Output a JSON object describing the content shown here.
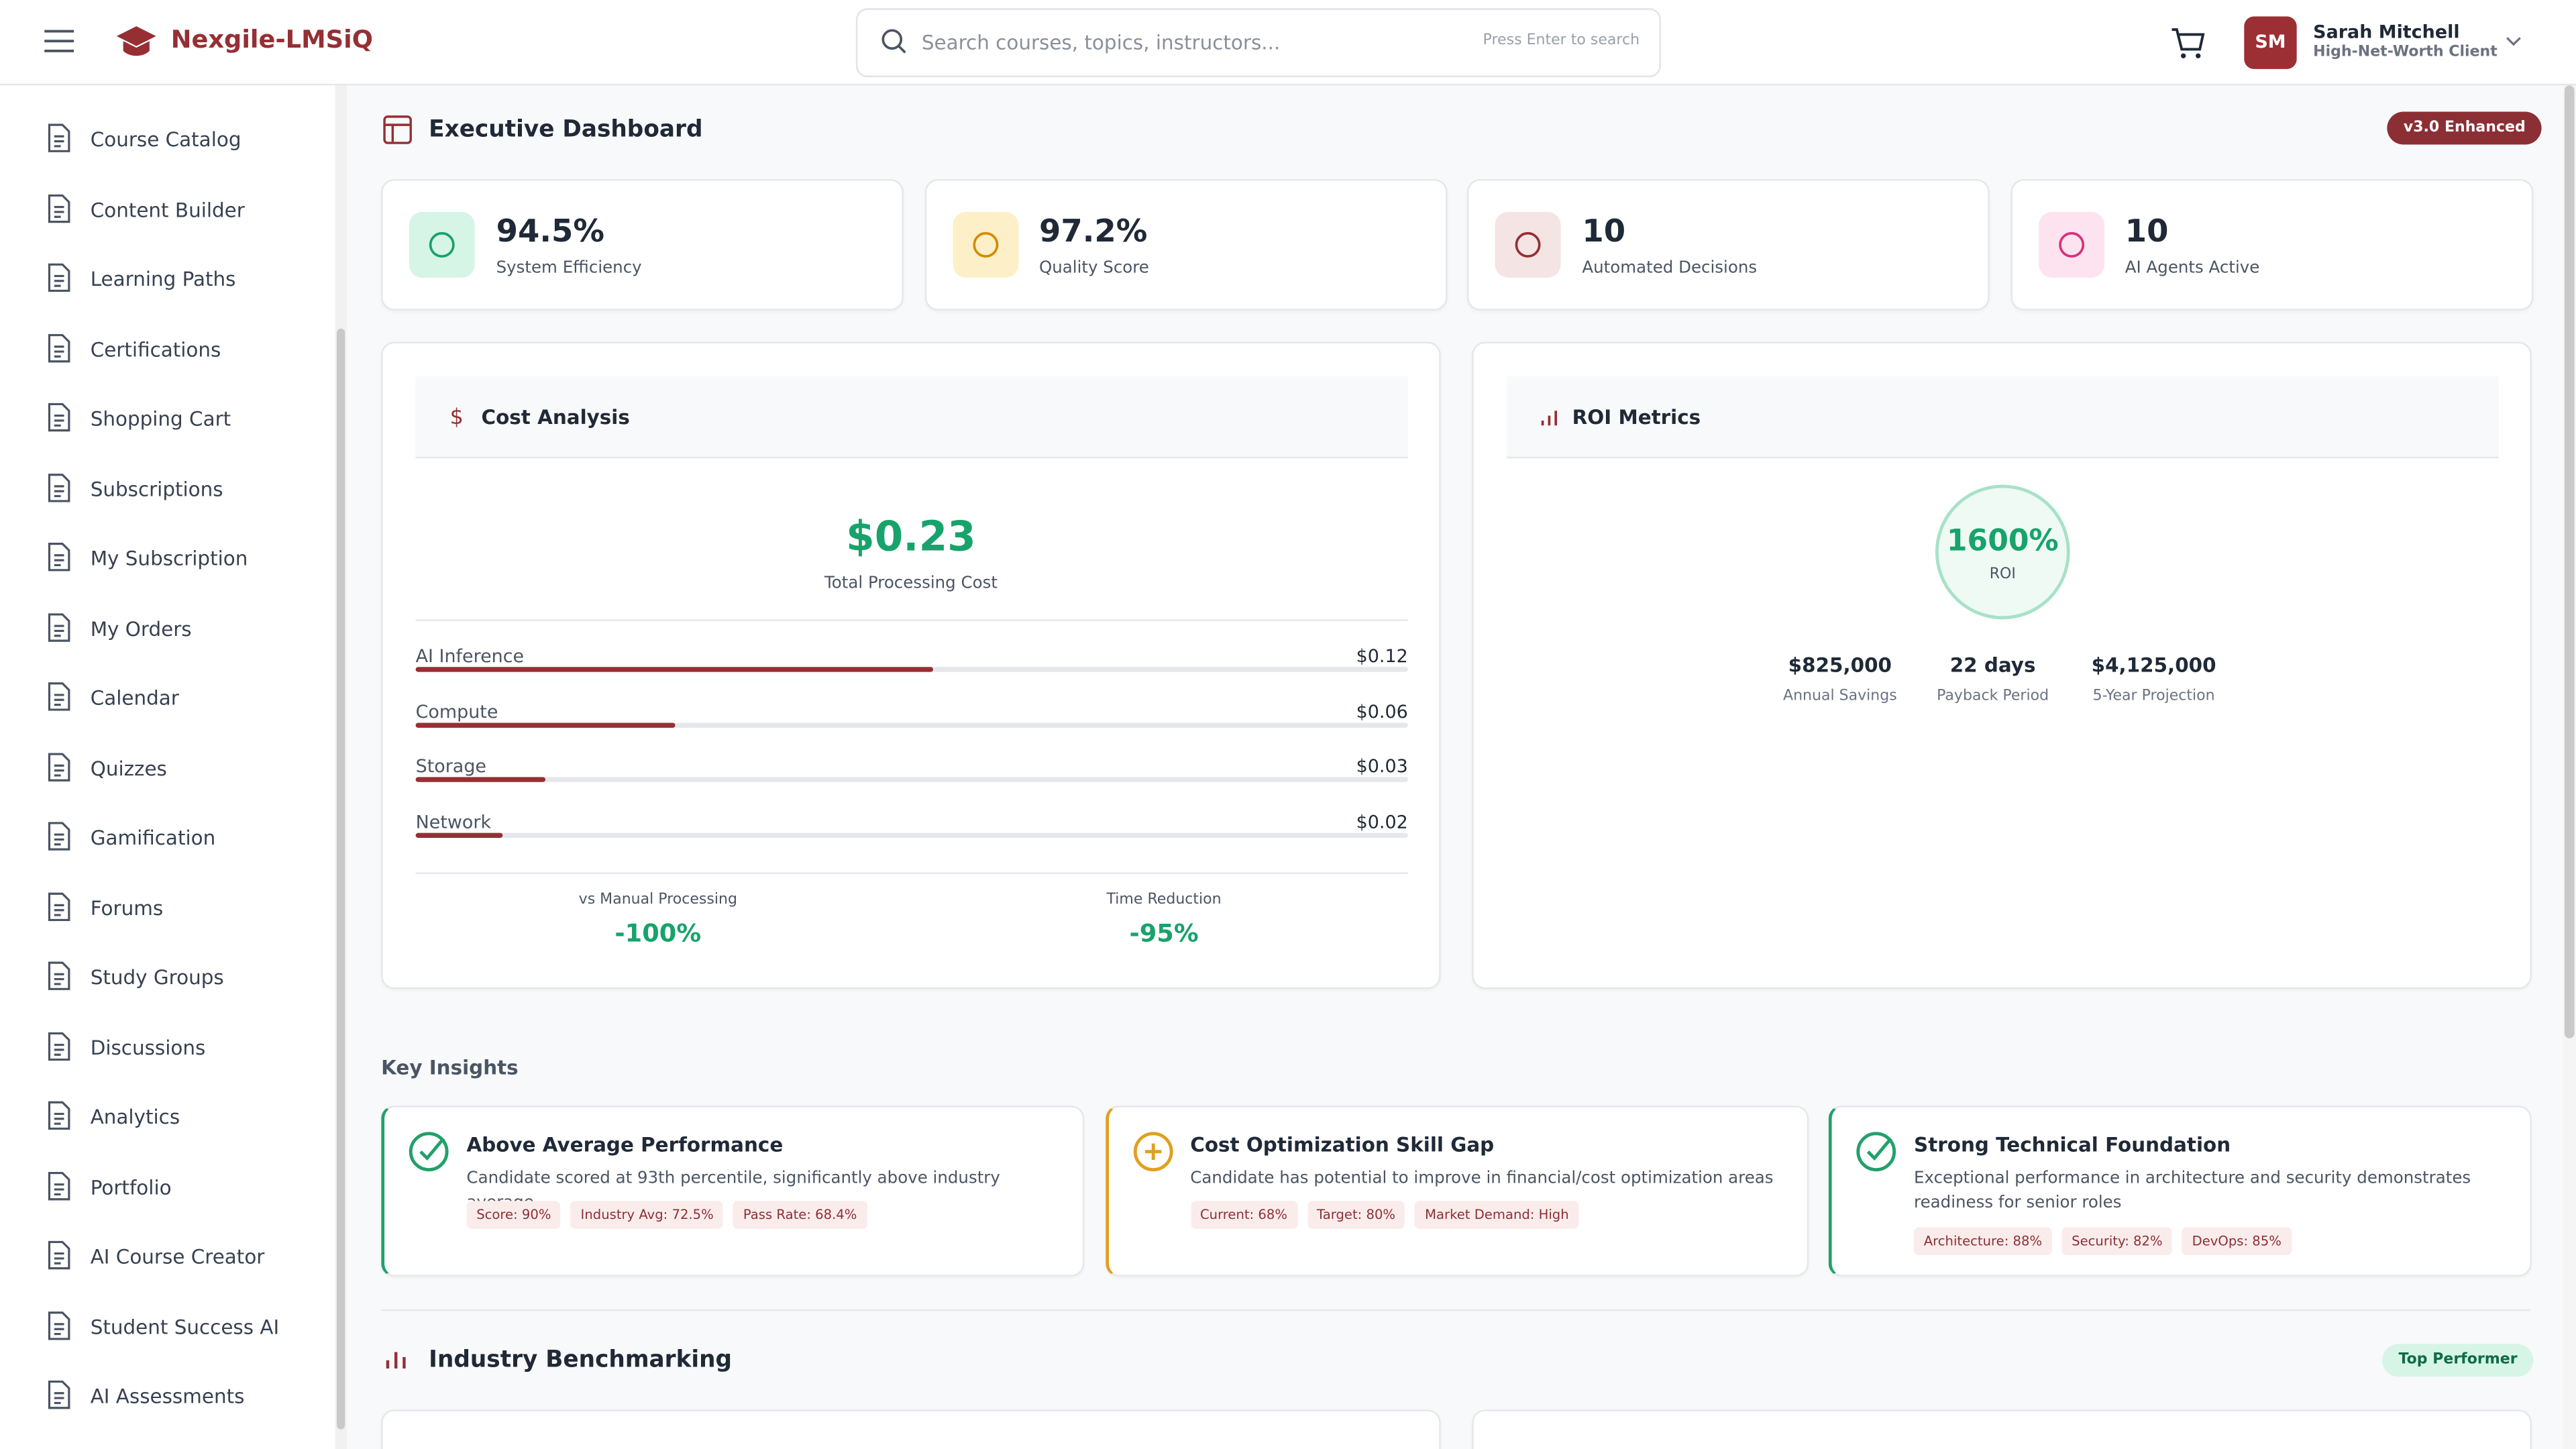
{
  "header": {
    "brand": "Nexgile-LMSiQ",
    "search_placeholder": "Search courses, topics, instructors...",
    "search_hint": "Press Enter to search",
    "user": {
      "initials": "SM",
      "name": "Sarah Mitchell",
      "role": "High-Net-Worth Client"
    }
  },
  "sidebar": {
    "items": [
      "Course Catalog",
      "Content Builder",
      "Learning Paths",
      "Certifications",
      "Shopping Cart",
      "Subscriptions",
      "My Subscription",
      "My Orders",
      "Calendar",
      "Quizzes",
      "Gamification",
      "Forums",
      "Study Groups",
      "Discussions",
      "Analytics",
      "Portfolio",
      "AI Course Creator",
      "Student Success AI",
      "AI Assessments"
    ]
  },
  "dashboard": {
    "title": "Executive Dashboard",
    "badge": "v3.0 Enhanced",
    "kpis": [
      {
        "value": "94.5%",
        "label": "System Efficiency"
      },
      {
        "value": "97.2%",
        "label": "Quality Score"
      },
      {
        "value": "10",
        "label": "Automated Decisions"
      },
      {
        "value": "10",
        "label": "AI Agents Active"
      }
    ]
  },
  "cost_analysis": {
    "title": "Cost Analysis",
    "total": {
      "value": 0.23,
      "label": "$0.23"
    },
    "total_label": "Total Processing Cost",
    "items": [
      {
        "name": "AI Inference",
        "value": 0.12,
        "label": "$0.12"
      },
      {
        "name": "Compute",
        "value": 0.06,
        "label": "$0.06"
      },
      {
        "name": "Storage",
        "value": 0.03,
        "label": "$0.03"
      },
      {
        "name": "Network",
        "value": 0.02,
        "label": "$0.02"
      }
    ],
    "comparisons": [
      {
        "label": "vs Manual Processing",
        "value": "-100%"
      },
      {
        "label": "Time Reduction",
        "value": "-95%"
      }
    ]
  },
  "roi_metrics": {
    "title": "ROI Metrics",
    "roi": "1600%",
    "roi_label": "ROI",
    "stats": [
      {
        "value": "$825,000",
        "label": "Annual Savings"
      },
      {
        "value": "22 days",
        "label": "Payback Period"
      },
      {
        "value": "$4,125,000",
        "label": "5-Year Projection"
      }
    ]
  },
  "key_insights": {
    "title": "Key Insights",
    "cards": [
      {
        "title": "Above Average Performance",
        "description": "Candidate scored at 93th percentile, significantly above industry average",
        "tags": [
          "Score: 90%",
          "Industry Avg: 72.5%",
          "Pass Rate: 68.4%"
        ],
        "accent": "#22a06b"
      },
      {
        "title": "Cost Optimization Skill Gap",
        "description": "Candidate has potential to improve in financial/cost optimization areas",
        "tags": [
          "Current: 68%",
          "Target: 80%",
          "Market Demand: High"
        ],
        "accent": "#e0a020"
      },
      {
        "title": "Strong Technical Foundation",
        "description": "Exceptional performance in architecture and security demonstrates readiness for senior roles",
        "tags": [
          "Architecture: 88%",
          "Security: 82%",
          "DevOps: 85%"
        ],
        "accent": "#22a06b"
      }
    ]
  },
  "benchmarking": {
    "title": "Industry Benchmarking",
    "badge": "Top Performer"
  }
}
